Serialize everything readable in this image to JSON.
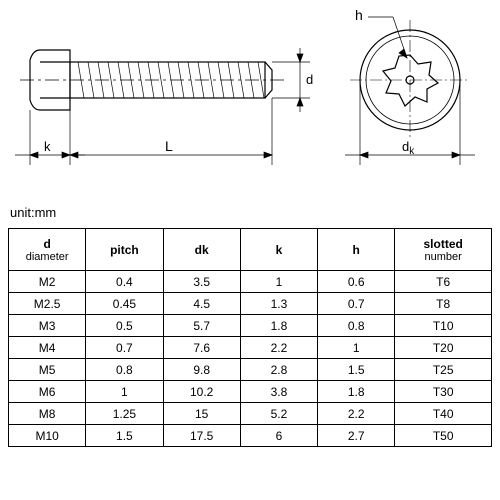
{
  "unit_label": "unit:mm",
  "diagram": {
    "labels": {
      "h": "h",
      "d": "d",
      "k": "k",
      "L": "L",
      "dk": "d",
      "dk_sub": "k"
    },
    "colors": {
      "stroke": "#000000",
      "hatch": "#000000",
      "centerline": "#000000",
      "background": "#ffffff"
    },
    "line_width": 1.2,
    "thin_line_width": 0.7
  },
  "table": {
    "columns": [
      {
        "key": "d",
        "header_main": "d",
        "header_sub": "diameter"
      },
      {
        "key": "pitch",
        "header_main": "pitch",
        "header_sub": ""
      },
      {
        "key": "dk",
        "header_main": "dk",
        "header_sub": ""
      },
      {
        "key": "k",
        "header_main": "k",
        "header_sub": ""
      },
      {
        "key": "h",
        "header_main": "h",
        "header_sub": ""
      },
      {
        "key": "slotted",
        "header_main": "slotted",
        "header_sub": "number"
      }
    ],
    "rows": [
      [
        "M2",
        "0.4",
        "3.5",
        "1",
        "0.6",
        "T6"
      ],
      [
        "M2.5",
        "0.45",
        "4.5",
        "1.3",
        "0.7",
        "T8"
      ],
      [
        "M3",
        "0.5",
        "5.7",
        "1.8",
        "0.8",
        "T10"
      ],
      [
        "M4",
        "0.7",
        "7.6",
        "2.2",
        "1",
        "T20"
      ],
      [
        "M5",
        "0.8",
        "9.8",
        "2.8",
        "1.5",
        "T25"
      ],
      [
        "M6",
        "1",
        "10.2",
        "3.8",
        "1.8",
        "T30"
      ],
      [
        "M8",
        "1.25",
        "15",
        "5.2",
        "2.2",
        "T40"
      ],
      [
        "M10",
        "1.5",
        "17.5",
        "6",
        "2.7",
        "T50"
      ]
    ]
  }
}
